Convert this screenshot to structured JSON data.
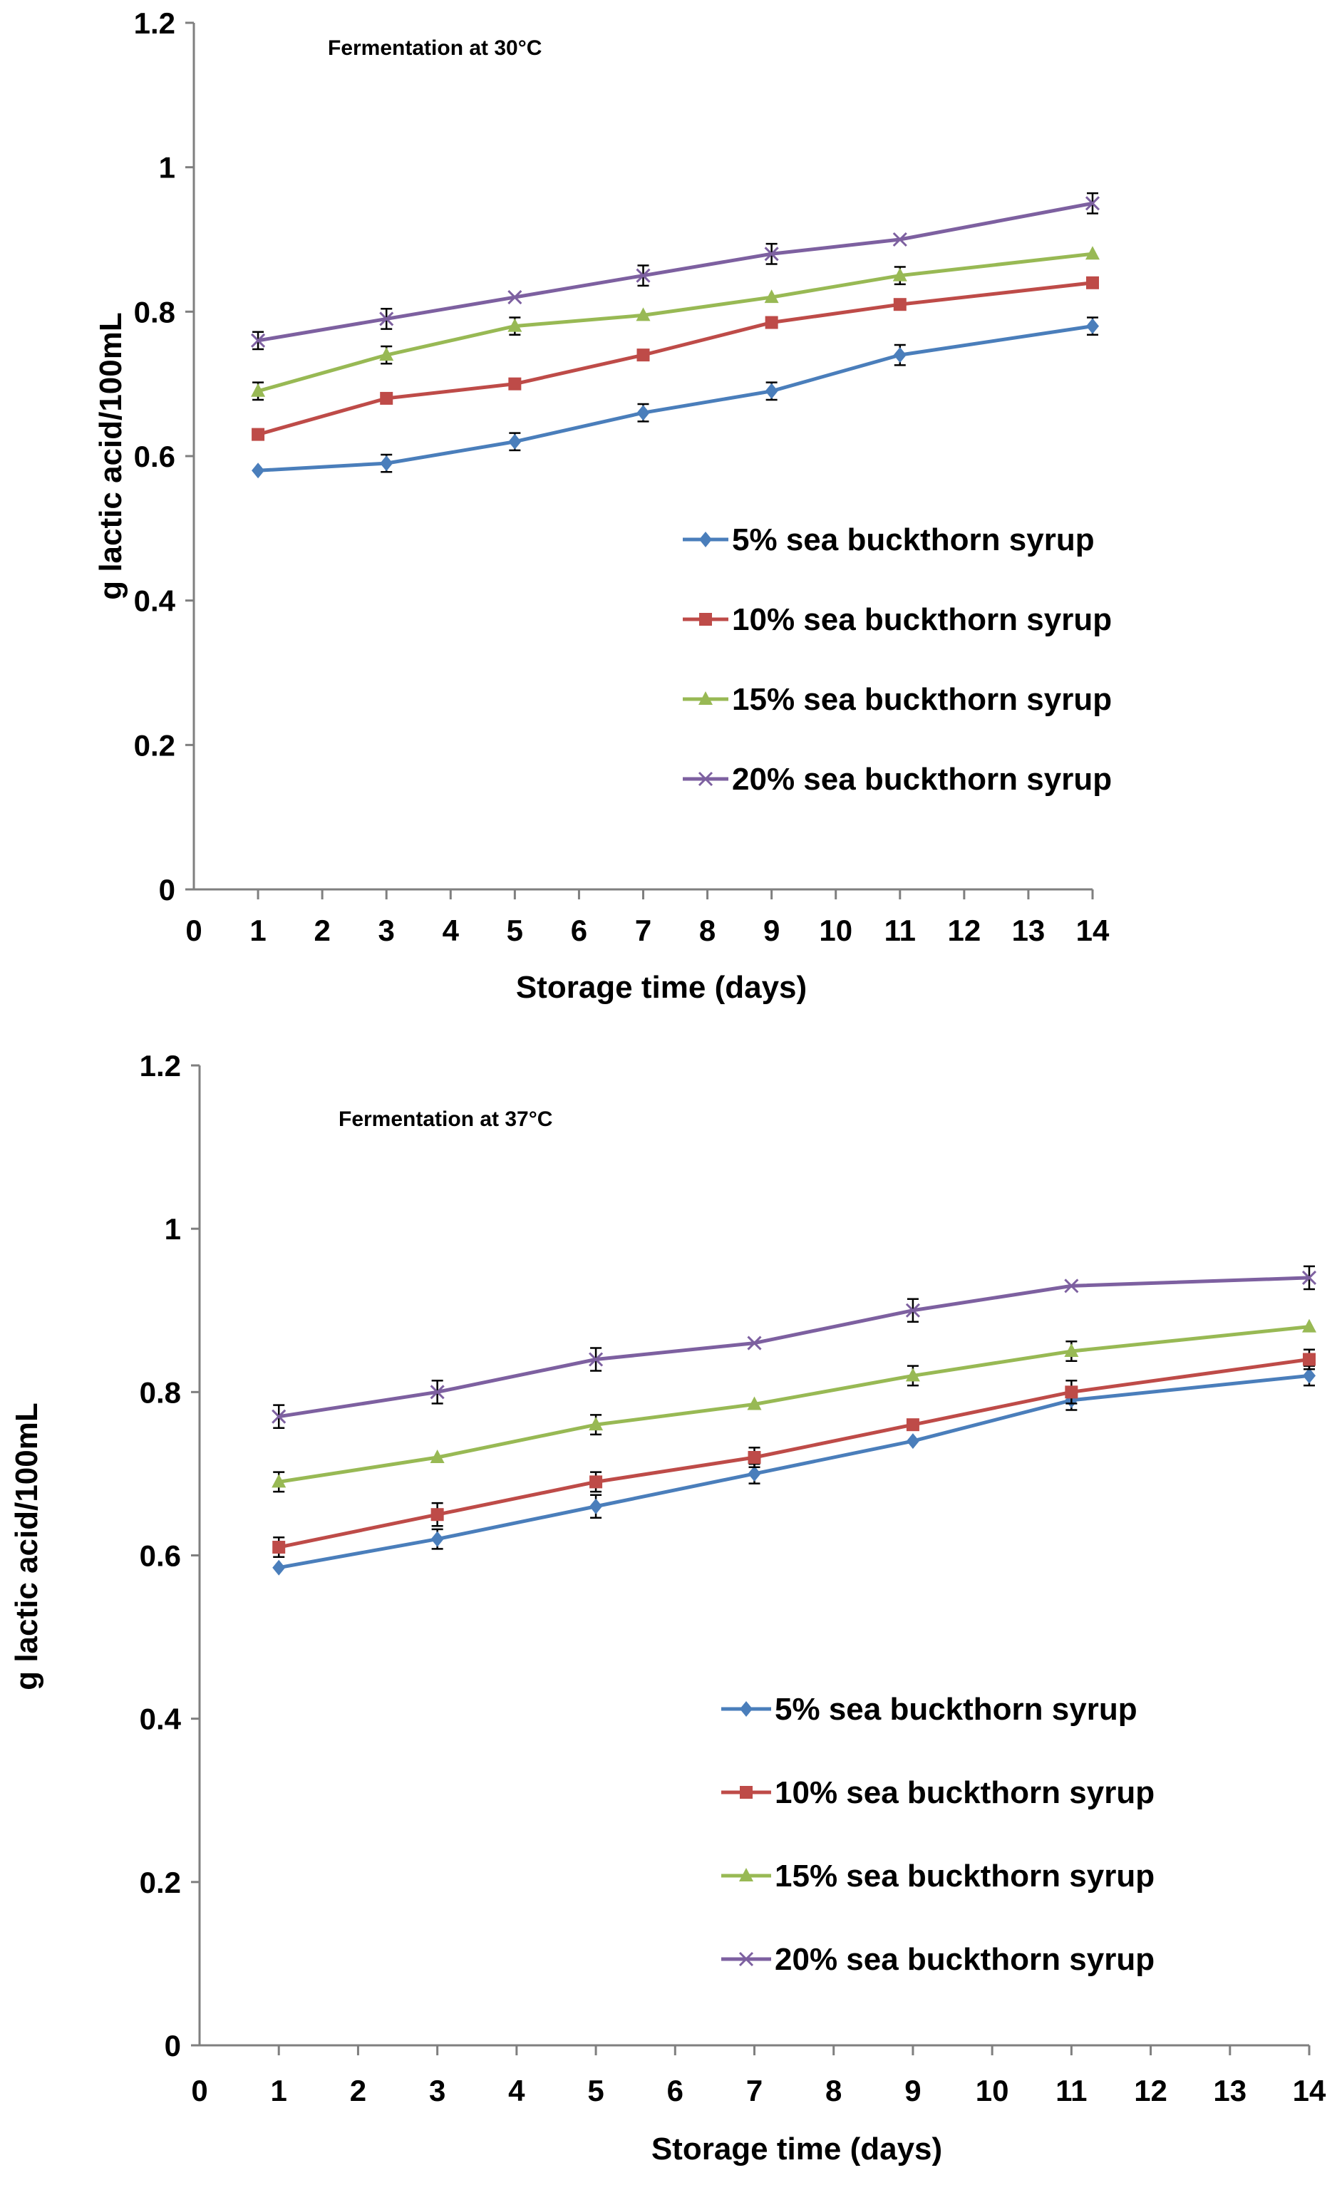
{
  "chart_data": [
    {
      "type": "line",
      "annotation": "Fermentation at 30°C",
      "xlabel": "Storage time (days)",
      "ylabel": "g lactic acid/100mL",
      "xlim": [
        0,
        14
      ],
      "ylim": [
        0,
        1.2
      ],
      "xticks": [
        "0",
        "1",
        "2",
        "3",
        "4",
        "5",
        "6",
        "7",
        "8",
        "9",
        "10",
        "11",
        "12",
        "13",
        "14"
      ],
      "yticks": [
        "0",
        "0.2",
        "0.4",
        "0.6",
        "0.8",
        "1",
        "1.2"
      ],
      "x": [
        1,
        3,
        5,
        7,
        9,
        11,
        14
      ],
      "legend_position": "center-right",
      "series": [
        {
          "name": "5% sea buckthorn syrup",
          "color": "#4A7EBB",
          "marker": "diamond",
          "values": [
            0.58,
            0.59,
            0.62,
            0.66,
            0.69,
            0.74,
            0.78
          ],
          "errors": [
            0,
            0.012,
            0.012,
            0.012,
            0.012,
            0.014,
            0.012
          ]
        },
        {
          "name": "10% sea buckthorn syrup",
          "color": "#BE4B48",
          "marker": "square",
          "values": [
            0.63,
            0.68,
            0.7,
            0.74,
            0.785,
            0.81,
            0.84
          ],
          "errors": [
            0,
            0,
            0,
            0,
            0,
            0,
            0
          ]
        },
        {
          "name": "15% sea buckthorn syrup",
          "color": "#98B954",
          "marker": "triangle",
          "values": [
            0.69,
            0.74,
            0.78,
            0.795,
            0.82,
            0.85,
            0.88
          ],
          "errors": [
            0.012,
            0.012,
            0.012,
            0,
            0,
            0.012,
            0
          ]
        },
        {
          "name": "20% sea buckthorn syrup",
          "color": "#7D60A0",
          "marker": "x",
          "values": [
            0.76,
            0.79,
            0.82,
            0.85,
            0.88,
            0.9,
            0.95
          ],
          "errors": [
            0.012,
            0.014,
            0,
            0.014,
            0.014,
            0,
            0.014
          ]
        }
      ]
    },
    {
      "type": "line",
      "annotation": "Fermentation at 37°C",
      "xlabel": "Storage time (days)",
      "ylabel": "g lactic acid/100mL",
      "xlim": [
        0,
        14
      ],
      "ylim": [
        0,
        1.2
      ],
      "xticks": [
        "0",
        "1",
        "2",
        "3",
        "4",
        "5",
        "6",
        "7",
        "8",
        "9",
        "10",
        "11",
        "12",
        "13",
        "14"
      ],
      "yticks": [
        "0",
        "0.2",
        "0.4",
        "0.6",
        "0.8",
        "1",
        "1.2"
      ],
      "x": [
        1,
        3,
        5,
        7,
        9,
        11,
        14
      ],
      "legend_position": "bottom-right",
      "series": [
        {
          "name": "5% sea buckthorn syrup",
          "color": "#4A7EBB",
          "marker": "diamond",
          "values": [
            0.585,
            0.62,
            0.66,
            0.7,
            0.74,
            0.79,
            0.82
          ],
          "errors": [
            0,
            0.012,
            0.014,
            0.012,
            0,
            0.012,
            0.012
          ]
        },
        {
          "name": "10% sea buckthorn syrup",
          "color": "#BE4B48",
          "marker": "square",
          "values": [
            0.61,
            0.65,
            0.69,
            0.72,
            0.76,
            0.8,
            0.84
          ],
          "errors": [
            0.012,
            0.014,
            0.012,
            0.012,
            0,
            0.014,
            0.012
          ]
        },
        {
          "name": "15% sea buckthorn syrup",
          "color": "#98B954",
          "marker": "triangle",
          "values": [
            0.69,
            0.72,
            0.76,
            0.785,
            0.82,
            0.85,
            0.88
          ],
          "errors": [
            0.012,
            0,
            0.012,
            0,
            0.012,
            0.012,
            0
          ]
        },
        {
          "name": "20% sea buckthorn syrup",
          "color": "#7D60A0",
          "marker": "x",
          "values": [
            0.77,
            0.8,
            0.84,
            0.86,
            0.9,
            0.93,
            0.94
          ],
          "errors": [
            0.014,
            0.014,
            0.014,
            0,
            0.014,
            0,
            0.014
          ]
        }
      ]
    }
  ]
}
